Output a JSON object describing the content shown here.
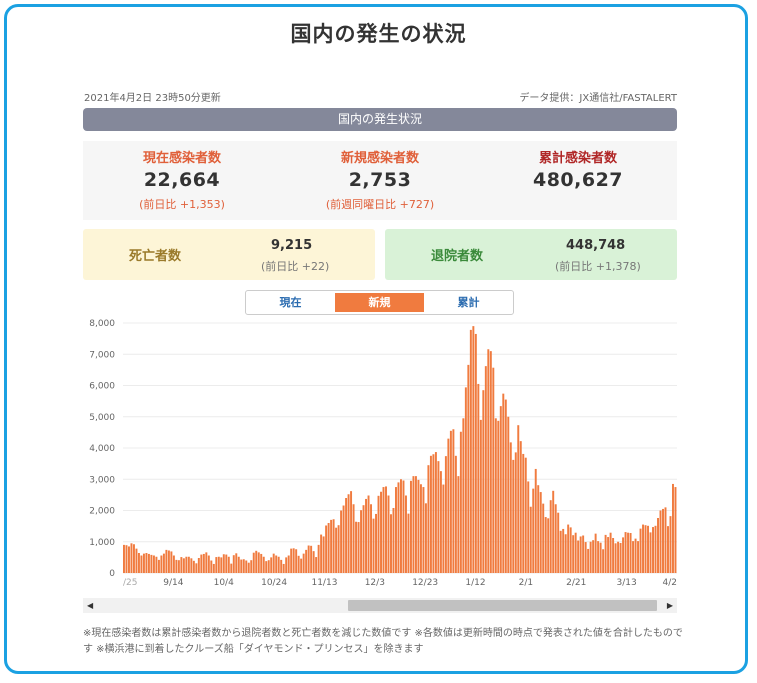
{
  "page": {
    "title": "国内の発生の状況",
    "updated": "2021年4月2日 23時50分更新",
    "source": "データ提供：JX通信社/FASTALERT",
    "section_title": "国内の発生状況"
  },
  "stats": {
    "current": {
      "label": "現在感染者数",
      "value": "22,664",
      "delta": "(前日比 +1,353)"
    },
    "new": {
      "label": "新規感染者数",
      "value": "2,753",
      "delta": "(前週同曜日比 +727)"
    },
    "total": {
      "label": "累計感染者数",
      "value": "480,627"
    },
    "deaths": {
      "label": "死亡者数",
      "value": "9,215",
      "delta": "(前日比 +22)"
    },
    "recovered": {
      "label": "退院者数",
      "value": "448,748",
      "delta": "(前日比 +1,378)"
    }
  },
  "tabs": [
    {
      "label": "現在",
      "active": false
    },
    {
      "label": "新規",
      "active": true
    },
    {
      "label": "累計",
      "active": false
    }
  ],
  "scrollbar": {
    "left_arrow": "◀",
    "right_arrow": "▶"
  },
  "footnote": "※現在感染者数は累計感染者数から退院者数と死亡者数を減じた数値です ※各数値は更新時間の時点で発表された値を合計したものです ※横浜港に到着したクルーズ船「ダイヤモンド・プリンセス」を除きます",
  "colors": {
    "bar": "#f07b3f",
    "accent": "#1ba1e2",
    "header_bar": "#84889a"
  },
  "chart_data": {
    "type": "bar",
    "ylim": [
      0,
      8000
    ],
    "y_ticks": [
      "8,000",
      "7,000",
      "6,000",
      "5,000",
      "4,000",
      "3,000",
      "2,000",
      "1,000",
      "0"
    ],
    "x_tick_labels": [
      "/25",
      "9/14",
      "10/4",
      "10/24",
      "11/13",
      "12/3",
      "12/23",
      "1/12",
      "2/1",
      "2/21",
      "3/13",
      "4/2"
    ],
    "x_range": [
      "2020/8/25",
      "2021/4/2"
    ],
    "values": [
      900,
      890,
      850,
      950,
      920,
      780,
      640,
      560,
      620,
      640,
      610,
      580,
      560,
      520,
      420,
      560,
      620,
      740,
      720,
      690,
      560,
      420,
      410,
      510,
      470,
      520,
      520,
      470,
      390,
      310,
      480,
      590,
      610,
      660,
      560,
      400,
      290,
      510,
      520,
      500,
      600,
      590,
      520,
      300,
      570,
      630,
      520,
      430,
      440,
      400,
      330,
      410,
      650,
      710,
      660,
      610,
      520,
      380,
      410,
      500,
      620,
      560,
      520,
      420,
      290,
      500,
      560,
      780,
      790,
      760,
      550,
      460,
      620,
      740,
      880,
      870,
      700,
      510,
      900,
      1230,
      1170,
      1520,
      1600,
      1700,
      1720,
      1450,
      1530,
      2000,
      2160,
      2400,
      2520,
      2620,
      2200,
      1640,
      1630,
      2010,
      2170,
      2370,
      2480,
      2200,
      1740,
      1890,
      2470,
      2600,
      2750,
      2770,
      2480,
      1880,
      2080,
      2750,
      2900,
      3000,
      2960,
      2480,
      1900,
      2950,
      3100,
      3100,
      2980,
      2840,
      2750,
      2230,
      3450,
      3750,
      3800,
      3870,
      3580,
      3260,
      2830,
      3740,
      4300,
      4550,
      4600,
      3750,
      3100,
      4520,
      4950,
      5940,
      6660,
      7780,
      7900,
      7650,
      6050,
      4900,
      5850,
      6620,
      7160,
      7100,
      6570,
      4950,
      4870,
      5340,
      5740,
      5550,
      5000,
      4180,
      3620,
      3860,
      4730,
      4220,
      3810,
      3690,
      2930,
      2120,
      2700,
      3330,
      2810,
      2590,
      2220,
      1790,
      1750,
      2330,
      2630,
      2200,
      1930,
      1350,
      1410,
      1240,
      1550,
      1460,
      1210,
      1290,
      1040,
      1170,
      1200,
      990,
      770,
      1000,
      1050,
      1260,
      1020,
      970,
      760,
      1220,
      1150,
      1290,
      1120,
      950,
      1000,
      960,
      1140,
      1310,
      1290,
      1280,
      1020,
      1100,
      1020,
      1420,
      1550,
      1530,
      1510,
      1300,
      1470,
      1510,
      1760,
      2000,
      2050,
      2100,
      1500,
      1820,
      2850,
      2750
    ]
  }
}
